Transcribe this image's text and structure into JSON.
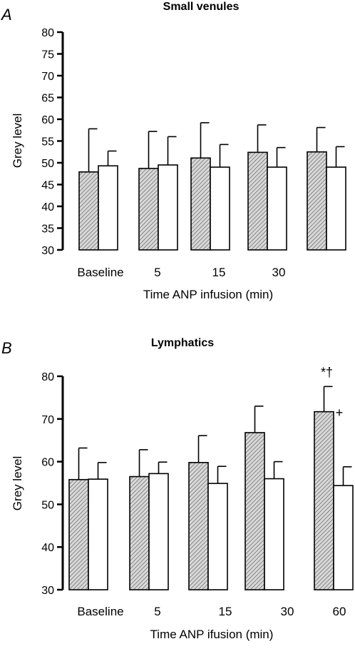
{
  "patterns": {
    "hatch_color": "#8a8a8a",
    "open_fill": "#ffffff",
    "stroke": "#000000"
  },
  "chart_data": [
    {
      "type": "bar",
      "panel_letter": "A",
      "title": "Small venules",
      "ylabel": "Grey level",
      "xlabel": "Time ANP infusion (min)",
      "ylim": [
        30,
        80
      ],
      "yticks": [
        30,
        35,
        40,
        45,
        50,
        55,
        60,
        65,
        70,
        75,
        80
      ],
      "categories": [
        "Baseline",
        "5",
        "15",
        "30",
        ""
      ],
      "series": [
        {
          "fill": "hatched",
          "values": [
            47.9,
            48.7,
            51.1,
            52.4,
            52.5
          ],
          "errors": [
            9.9,
            8.5,
            8.1,
            6.3,
            5.6
          ]
        },
        {
          "fill": "open",
          "values": [
            49.3,
            49.5,
            49.0,
            49.0,
            49.0
          ],
          "errors": [
            3.4,
            6.5,
            5.2,
            4.5,
            4.7
          ]
        }
      ],
      "annotations": []
    },
    {
      "type": "bar",
      "panel_letter": "B",
      "title": "Lymphatics",
      "ylabel": "Grey level",
      "xlabel": "Time ANP ifusion (min)",
      "ylim": [
        30,
        80
      ],
      "yticks": [
        30,
        40,
        50,
        60,
        70,
        80
      ],
      "categories": [
        "Baseline",
        "5",
        "15",
        "30",
        "60"
      ],
      "series": [
        {
          "fill": "hatched",
          "values": [
            55.8,
            56.5,
            59.8,
            66.8,
            71.7
          ],
          "errors": [
            7.4,
            6.3,
            6.3,
            6.2,
            5.9
          ]
        },
        {
          "fill": "open",
          "values": [
            55.9,
            57.2,
            54.9,
            56.0,
            54.4
          ],
          "errors": [
            3.9,
            2.7,
            4.0,
            4.0,
            4.4
          ]
        }
      ],
      "annotations": [
        {
          "text": "*†",
          "category_index": 4,
          "series_index": 0
        },
        {
          "text": "+",
          "category_index": 4,
          "series_index": 0
        }
      ]
    }
  ]
}
